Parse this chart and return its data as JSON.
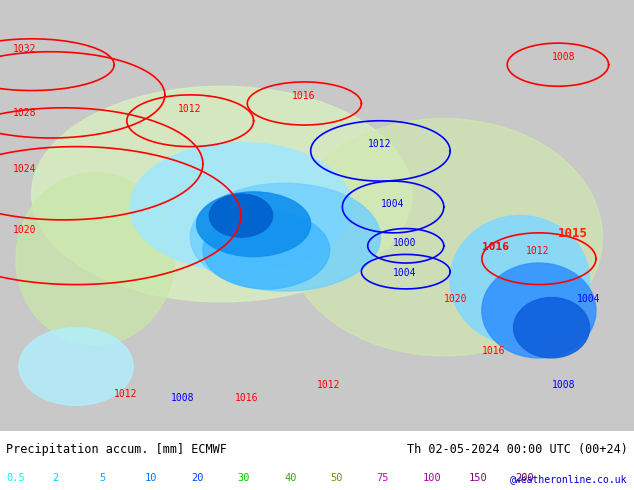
{
  "title_left": "Precipitation accum. [mm] ECMWF",
  "title_right": "Th 02-05-2024 00:00 UTC (00+24)",
  "credit": "@weatheronline.co.uk",
  "legend_values": [
    "0.5",
    "2",
    "5",
    "10",
    "20",
    "30",
    "40",
    "50",
    "75",
    "100",
    "150",
    "200"
  ],
  "legend_colors": [
    "#00ffff",
    "#00d0ff",
    "#00aaff",
    "#0077ff",
    "#0044ff",
    "#00cc00",
    "#33aa00",
    "#669900",
    "#cc00cc",
    "#aa00aa",
    "#880088",
    "#660066"
  ],
  "bg_color": "#e8e8e8",
  "map_bg": "#d4d4d4",
  "title_color": "#000000",
  "title_right_color": "#000000",
  "credit_color": "#0000cc",
  "bottom_bar_color": "#ffffff",
  "figsize": [
    6.34,
    4.9
  ],
  "dpi": 100
}
